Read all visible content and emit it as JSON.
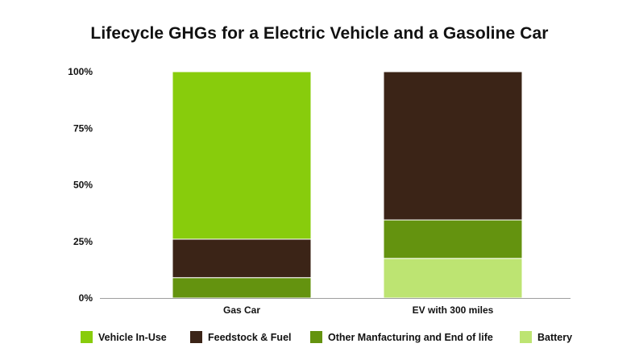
{
  "chart_data": {
    "type": "bar",
    "stacked": true,
    "title": "Lifecycle GHGs for a Electric Vehicle and a Gasoline Car",
    "categories": [
      "Gas Car",
      "EV with 300 miles"
    ],
    "y_ticks": [
      "0%",
      "25%",
      "50%",
      "75%",
      "100%"
    ],
    "ylim": [
      0,
      100
    ],
    "grid": false,
    "legend_position": "bottom",
    "series": [
      {
        "name": "Battery",
        "color": "#bde472",
        "values": [
          0,
          17.5
        ]
      },
      {
        "name": "Other Manfacturing and End of life",
        "color": "#64930f",
        "values": [
          9,
          17
        ]
      },
      {
        "name": "Feedstock & Fuel",
        "color": "#3b2417",
        "values": [
          17,
          65.5
        ]
      },
      {
        "name": "Vehicle In-Use",
        "color": "#88cc0c",
        "values": [
          74,
          0
        ]
      }
    ],
    "legend_order": [
      "Vehicle In-Use",
      "Feedstock & Fuel",
      "Other Manfacturing and End of life",
      "Battery"
    ]
  }
}
